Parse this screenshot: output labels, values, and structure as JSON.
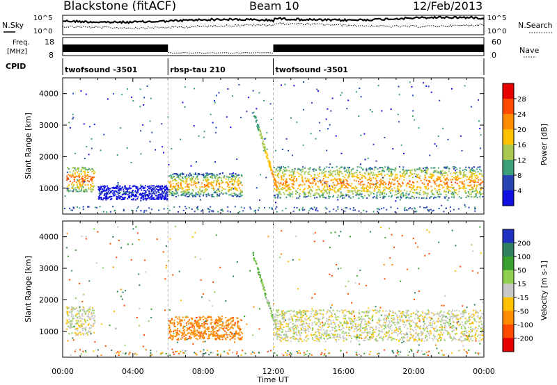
{
  "header": {
    "station": "Blackstone (fitACF)",
    "beam": "Beam 10",
    "date": "12/Feb/2013"
  },
  "left_labels": {
    "nsky": "N.Sky",
    "freq_line1": "Freq.",
    "freq_line2": "[MHz]",
    "cpid": "CPID"
  },
  "right_labels": {
    "nsearch": "N.Search",
    "nave": "Nave"
  },
  "noise_ticks_left": [
    "10^5",
    "10^0"
  ],
  "noise_ticks_right": [
    "10^5",
    "10^0"
  ],
  "freq_ticks": [
    "18",
    "8"
  ],
  "nave_ticks": [
    "60",
    "0"
  ],
  "cpid_segments": [
    {
      "label": "twofsound -3501",
      "start_h": 0,
      "end_h": 6
    },
    {
      "label": "rbsp-tau 210",
      "start_h": 6,
      "end_h": 12
    },
    {
      "label": "twofsound -3501",
      "start_h": 12,
      "end_h": 24
    }
  ],
  "power_colorbar": {
    "label": "Power [dB]",
    "ticks": [
      "28",
      "24",
      "20",
      "16",
      "12",
      "8",
      "4"
    ],
    "colors": [
      "#e60000",
      "#ff4a00",
      "#ff8c00",
      "#ffc000",
      "#a8c850",
      "#3c9f78",
      "#2844b4",
      "#1010e0"
    ]
  },
  "velocity_colorbar": {
    "label": "Velocity [m s-1]",
    "ticks": [
      "200",
      "100",
      "50",
      "15",
      "-15",
      "-50",
      "-100",
      "-200"
    ],
    "colors": [
      "#2030c0",
      "#2f7f5f",
      "#3aa030",
      "#90d050",
      "#c8c8c8",
      "#ffc000",
      "#ff8c00",
      "#ff4a00",
      "#e60000"
    ]
  },
  "chart_data": [
    {
      "type": "heatmap",
      "title": "",
      "xlabel": "Time UT",
      "ylabel": "Slant Range [km]",
      "xlim": [
        0,
        24
      ],
      "ylim": [
        180,
        4500
      ],
      "x_ticks": [
        "00:00",
        "04:00",
        "08:00",
        "12:00",
        "16:00",
        "20:00",
        "00:00"
      ],
      "y_ticks": [
        1000,
        2000,
        3000,
        4000
      ],
      "colorbar": "Power [dB]",
      "regions": [
        {
          "t_start": 0.2,
          "t_end": 1.8,
          "range_km": [
            900,
            1700
          ],
          "power_db": 26
        },
        {
          "t_start": 2.0,
          "t_end": 6.0,
          "range_km": [
            650,
            1100
          ],
          "power_db": 6
        },
        {
          "t_start": 6.0,
          "t_end": 10.2,
          "range_km": [
            750,
            1500
          ],
          "power_db": 22
        },
        {
          "t_start": 12.0,
          "t_end": 24.0,
          "range_km": [
            700,
            1700
          ],
          "power_db": 24
        }
      ]
    },
    {
      "type": "heatmap",
      "title": "",
      "xlabel": "Time UT",
      "ylabel": "Slant Range [km]",
      "xlim": [
        0,
        24
      ],
      "ylim": [
        180,
        4500
      ],
      "x_ticks": [
        "00:00",
        "04:00",
        "08:00",
        "12:00",
        "16:00",
        "20:00",
        "00:00"
      ],
      "y_ticks": [
        1000,
        2000,
        3000,
        4000
      ],
      "colorbar": "Velocity [m s-1]",
      "regions": [
        {
          "t_start": 0.2,
          "t_end": 1.8,
          "range_km": [
            900,
            1800
          ],
          "velocity_ms": 0
        },
        {
          "t_start": 6.0,
          "t_end": 10.2,
          "range_km": [
            750,
            1500
          ],
          "velocity_ms": -80
        },
        {
          "t_start": 12.0,
          "t_end": 24.0,
          "range_km": [
            700,
            1700
          ],
          "velocity_ms": 0
        }
      ]
    }
  ]
}
